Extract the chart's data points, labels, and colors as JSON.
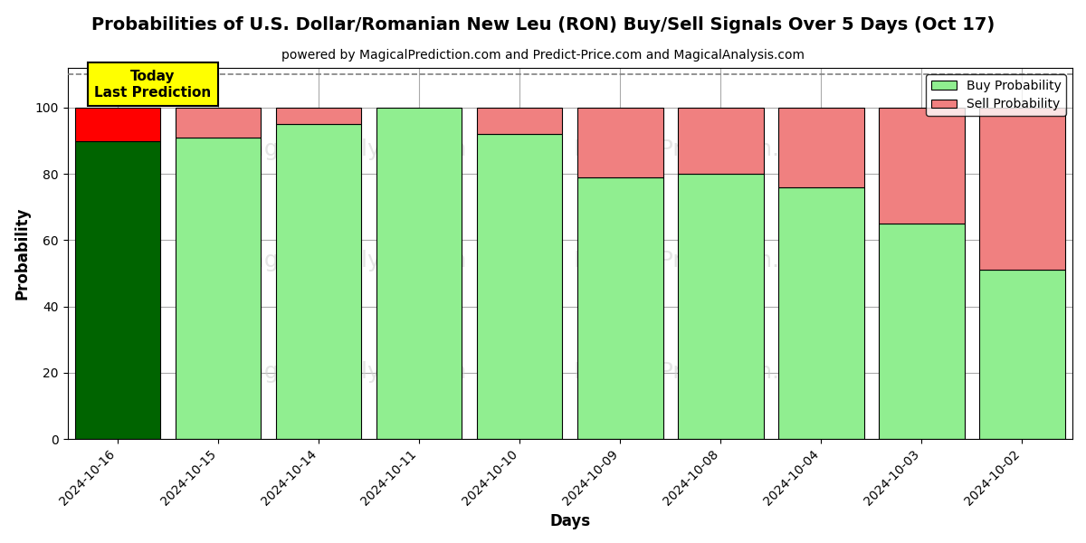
{
  "title": "Probabilities of U.S. Dollar/Romanian New Leu (RON) Buy/Sell Signals Over 5 Days (Oct 17)",
  "subtitle": "powered by MagicalPrediction.com and Predict-Price.com and MagicalAnalysis.com",
  "xlabel": "Days",
  "ylabel": "Probability",
  "categories": [
    "2024-10-16",
    "2024-10-15",
    "2024-10-14",
    "2024-10-11",
    "2024-10-10",
    "2024-10-09",
    "2024-10-08",
    "2024-10-04",
    "2024-10-03",
    "2024-10-02"
  ],
  "buy_values": [
    90,
    91,
    95,
    100,
    92,
    79,
    80,
    76,
    65,
    51
  ],
  "sell_values": [
    10,
    9,
    5,
    0,
    8,
    21,
    20,
    24,
    35,
    49
  ],
  "buy_color_first": "#006400",
  "buy_color_rest": "#90EE90",
  "sell_color_first": "#FF0000",
  "sell_color_rest": "#F08080",
  "ylim": [
    0,
    112
  ],
  "yticks": [
    0,
    20,
    40,
    60,
    80,
    100
  ],
  "dashed_line_y": 110,
  "today_label": "Today\nLast Prediction",
  "today_box_color": "#FFFF00",
  "legend_buy_label": "Buy Probability",
  "legend_sell_label": "Sell Probability",
  "watermark_color_light": "#d0d0d0",
  "grid_color": "#aaaaaa",
  "background_color": "#ffffff",
  "title_fontsize": 14,
  "subtitle_fontsize": 10,
  "axis_label_fontsize": 12,
  "tick_fontsize": 10,
  "bar_width": 0.85
}
